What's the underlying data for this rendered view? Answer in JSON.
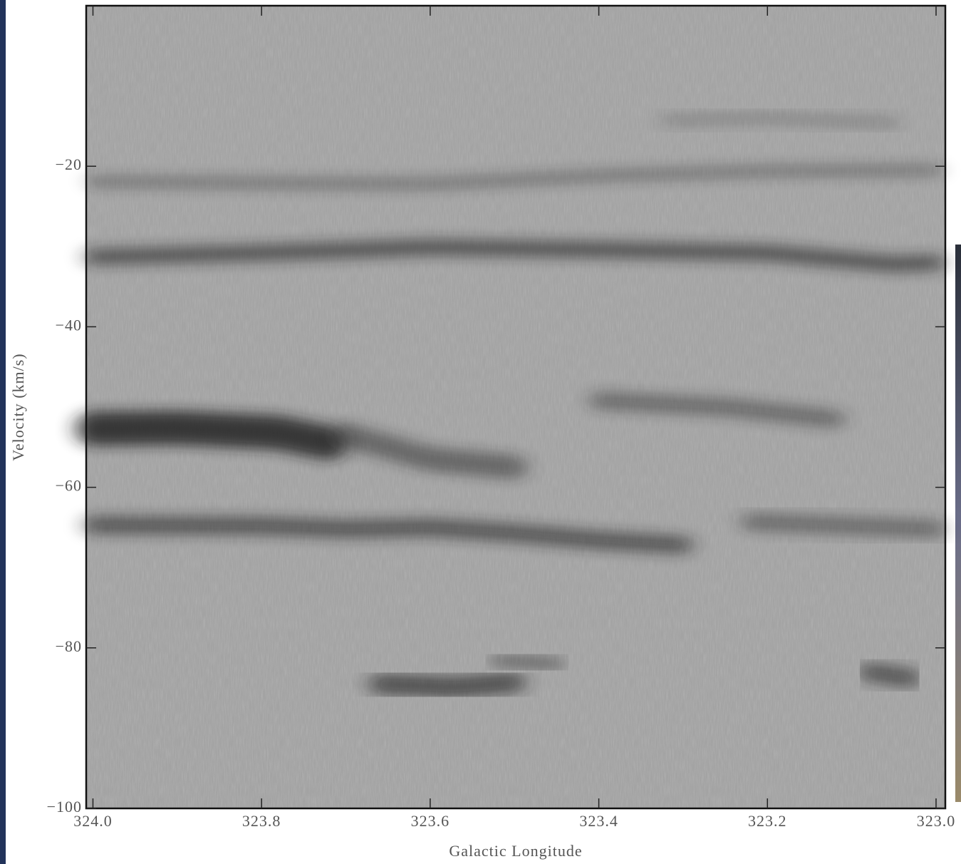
{
  "chart_data": {
    "type": "position-velocity",
    "xlabel": "Galactic Longitude",
    "ylabel": "Velocity (km/s)",
    "xlim": [
      324.008,
      322.989
    ],
    "ylim": [
      -100,
      0
    ],
    "xticks": [
      {
        "value": 324,
        "label": "324.0"
      },
      323.8,
      323.6,
      323.4,
      323.2,
      {
        "value": 323,
        "label": "323.0"
      }
    ],
    "yticks": [
      {
        "value": -20,
        "label": "−20"
      },
      {
        "value": -40,
        "label": "−40"
      },
      {
        "value": -60,
        "label": "−60"
      },
      {
        "value": -80,
        "label": "−80"
      },
      {
        "value": -100,
        "label": "−100"
      }
    ],
    "colormap": "gray",
    "features": [
      {
        "x": [
          324.0,
          323.8,
          323.6,
          323.4,
          323.2,
          323.0
        ],
        "y": [
          -21.9,
          -22.1,
          -22.2,
          -21.2,
          -20.6,
          -20.5
        ]
      },
      {
        "x": [
          323.32,
          323.2,
          323.05
        ],
        "y": [
          -14.3,
          -14.0,
          -14.6
        ]
      },
      {
        "x": [
          324.0,
          323.8,
          323.6,
          323.4,
          323.2,
          323.05,
          323.0
        ],
        "y": [
          -31.3,
          -30.8,
          -30.1,
          -30.4,
          -30.8,
          -32.2,
          -32.0
        ]
      },
      {
        "x": [
          324.0,
          323.9,
          323.78,
          323.72
        ],
        "y": [
          -52.7,
          -52.6,
          -53.2,
          -54.5
        ]
      },
      {
        "x": [
          323.7,
          323.6,
          323.5
        ],
        "y": [
          -53.5,
          -56.5,
          -57.5
        ]
      },
      {
        "x": [
          323.4,
          323.25,
          323.12
        ],
        "y": [
          -49.2,
          -50.0,
          -51.5
        ]
      },
      {
        "x": [
          324.0,
          323.8,
          323.7,
          323.6,
          323.5,
          323.4,
          323.3
        ],
        "y": [
          -64.7,
          -64.8,
          -65.2,
          -65.0,
          -65.7,
          -66.6,
          -67.2
        ]
      },
      {
        "x": [
          323.22,
          323.1,
          323.0
        ],
        "y": [
          -64.3,
          -64.8,
          -65.2
        ]
      },
      {
        "x": [
          323.66,
          323.57,
          323.5
        ],
        "y": [
          -84.5,
          -84.9,
          -84.3
        ]
      },
      {
        "x": [
          323.52,
          323.45
        ],
        "y": [
          -81.6,
          -82.0
        ]
      },
      {
        "x": [
          323.08,
          323.03
        ],
        "y": [
          -83.0,
          -83.8
        ]
      }
    ]
  }
}
